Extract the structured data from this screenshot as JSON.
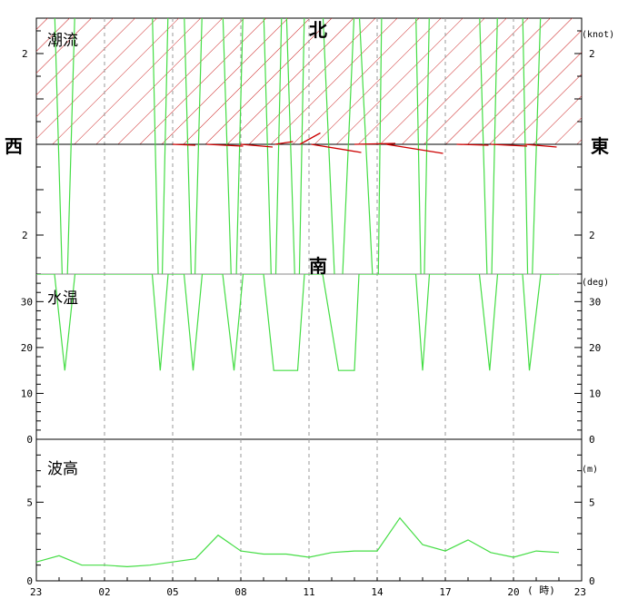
{
  "chart_data": [
    {
      "panel": "tide",
      "type": "line",
      "title": "潮流",
      "unit": "(knot)",
      "directions": {
        "north": "北",
        "south": "南",
        "west": "西",
        "east": "東"
      },
      "y_ticks_left": [
        "2",
        "2"
      ],
      "y_ticks_right": [
        "2",
        "2"
      ],
      "ylim": [
        -2.8,
        2.8
      ],
      "shaded_region": "northern half (hatched red)",
      "current_speed_series": {
        "color": "#44dd44",
        "x": [
          0,
          0.8,
          1.25,
          1.7,
          2.4,
          5.1,
          5.45,
          5.8,
          6.5,
          6.9,
          7.3,
          8.2,
          8.7,
          9.1,
          10.0,
          10.45,
          10.8,
          11.0,
          11.5,
          11.8,
          12.6,
          13.3,
          14.0,
          14.2,
          15.0,
          15.2,
          16.0,
          16.7,
          17.0,
          17.3,
          18.0,
          18.6,
          19.5,
          19.95,
          20.3,
          21.0,
          21.4,
          21.7,
          22.2,
          23.0
        ],
        "y": [
          3.0,
          3.0,
          -4.9,
          3.0,
          3.0,
          3.0,
          -4.9,
          3.0,
          3.0,
          -4.4,
          3.0,
          3.0,
          -4.9,
          3.0,
          3.0,
          -4.9,
          3.0,
          3.0,
          -4.9,
          3.0,
          3.0,
          -4.9,
          3.0,
          3.0,
          -4.9,
          3.0,
          3.0,
          3.0,
          -4.9,
          3.0,
          3.0,
          3.0,
          3.0,
          -4.9,
          3.0,
          3.0,
          3.0,
          -4.9,
          3.0,
          3.0
        ]
      },
      "vectors_note": "short red current vectors along the east-west axis from 05 to 23",
      "vectors": [
        {
          "x": 6.0,
          "dx": 1.0,
          "dy": -0.02
        },
        {
          "x": 7.5,
          "dx": 1.6,
          "dy": -0.04
        },
        {
          "x": 9.0,
          "dx": 1.4,
          "dy": -0.06
        },
        {
          "x": 10.5,
          "dx": 0.8,
          "dy": 0.06
        },
        {
          "x": 11.6,
          "dx": 0.9,
          "dy": 0.25
        },
        {
          "x": 12.1,
          "dx": 2.2,
          "dy": -0.18
        },
        {
          "x": 14.0,
          "dx": 1.8,
          "dy": 0.02
        },
        {
          "x": 15.4,
          "dx": 2.5,
          "dy": -0.2
        },
        {
          "x": 18.5,
          "dx": 1.4,
          "dy": -0.02
        },
        {
          "x": 20.0,
          "dx": 1.6,
          "dy": -0.04
        },
        {
          "x": 21.5,
          "dx": 1.4,
          "dy": -0.06
        }
      ]
    },
    {
      "panel": "water-temperature",
      "type": "line",
      "title": "水温",
      "unit": "(deg)",
      "ylim": [
        0,
        36
      ],
      "y_ticks": [
        0,
        10,
        20,
        30
      ],
      "series": {
        "color": "#44dd44",
        "x": [
          0,
          0.8,
          1.25,
          1.7,
          2.4,
          5.1,
          5.45,
          5.8,
          6.5,
          6.9,
          7.3,
          8.2,
          8.7,
          9.1,
          10.0,
          10.45,
          10.8,
          11.0,
          11.5,
          11.8,
          12.6,
          13.3,
          14.0,
          14.2,
          15.0,
          15.2,
          16.0,
          16.7,
          17.0,
          17.3,
          18.0,
          18.6,
          19.5,
          19.95,
          20.3,
          21.0,
          21.4,
          21.7,
          22.2,
          23.0
        ],
        "y": [
          36,
          36,
          15,
          36,
          36,
          36,
          15,
          36,
          36,
          15,
          36,
          36,
          15,
          36,
          36,
          15,
          15,
          15,
          15,
          36,
          36,
          15,
          15,
          36,
          36,
          36,
          36,
          36,
          15,
          36,
          36,
          36,
          36,
          15,
          36,
          36,
          36,
          15,
          36,
          36
        ]
      }
    },
    {
      "panel": "wave-height",
      "type": "line",
      "title": "波高",
      "unit": "(m)",
      "ylim": [
        0,
        9
      ],
      "y_ticks": [
        0,
        5
      ],
      "series": {
        "color": "#44dd44",
        "x": [
          0,
          1,
          2,
          3,
          4,
          5,
          6,
          7,
          8,
          9,
          10,
          11,
          12,
          13,
          14,
          15,
          16,
          17,
          18,
          19,
          20,
          21,
          22,
          23
        ],
        "y": [
          1.2,
          1.6,
          1.0,
          1.0,
          0.9,
          1.0,
          1.2,
          1.4,
          2.9,
          1.9,
          1.7,
          1.7,
          1.5,
          1.8,
          1.9,
          1.9,
          4.0,
          2.3,
          1.9,
          2.6,
          1.8,
          1.5,
          1.9,
          1.8
        ]
      }
    }
  ],
  "x_axis": {
    "tick_labels": [
      "23",
      "02",
      "05",
      "08",
      "11",
      "14",
      "17",
      "20",
      "23"
    ],
    "tick_hours": [
      0,
      3,
      6,
      9,
      12,
      15,
      18,
      21,
      24
    ],
    "unit_label": "( 時)"
  }
}
